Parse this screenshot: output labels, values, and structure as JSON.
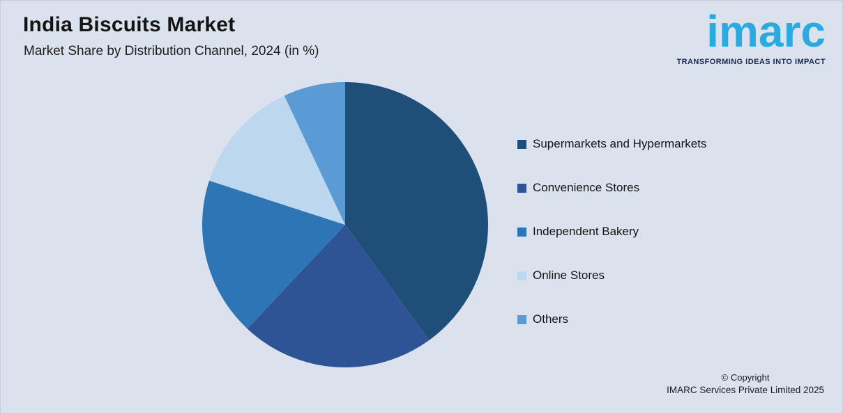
{
  "header": {
    "title": "India Biscuits Market",
    "subtitle": "Market Share by Distribution Channel, 2024 (in %)"
  },
  "logo": {
    "text": "imarc",
    "tagline": "TRANSFORMING IDEAS INTO IMPACT",
    "brand_color": "#29abe2",
    "tagline_color": "#17294e"
  },
  "chart_data": {
    "type": "pie",
    "title": "India Biscuits Market",
    "subtitle": "Market Share by Distribution Channel, 2024 (in %)",
    "unit": "%",
    "labels": [
      "Supermarkets and Hypermarkets",
      "Convenience Stores",
      "Independent Bakery",
      "Online Stores",
      "Others"
    ],
    "values": [
      40,
      22,
      18,
      13,
      7
    ],
    "colors": [
      "#1f4e79",
      "#2f5496",
      "#2e75b6",
      "#bdd7ee",
      "#5b9bd5"
    ],
    "start_angle_deg": 0,
    "direction": "clockwise",
    "legend_position": "right",
    "data_labels_shown": false,
    "background_color": "#dbe2ee"
  },
  "footer": {
    "copyright_line1": "© Copyright",
    "copyright_line2": "IMARC Services Private Limited 2025"
  }
}
